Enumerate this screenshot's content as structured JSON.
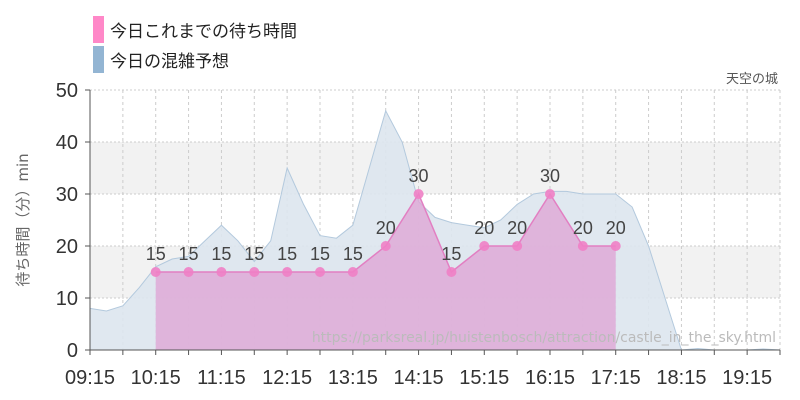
{
  "legend": [
    {
      "label": "今日これまでの待ち時間",
      "color": "#ff88c8"
    },
    {
      "label": "今日の混雑予想",
      "color": "#93b5d3"
    }
  ],
  "attraction_name": "天空の城",
  "source_url": "https://parksreal.jp/huistenbosch/attraction/castle_in_the_sky.html",
  "colors": {
    "actual_fill": "#dfa6d6",
    "actual_stroke": "#e27fc2",
    "marker": "#f080c5",
    "forecast_fill": "#dde6ee",
    "forecast_stroke": "#b3c9dd",
    "band": "#f2f2f2",
    "grid": "#cccccc",
    "axis": "#555555"
  },
  "chart_data": {
    "type": "area",
    "ylabel": "待ち時間（分）min",
    "ylim": [
      0,
      50
    ],
    "yticks": [
      0,
      10,
      20,
      30,
      40,
      50
    ],
    "xlim": [
      "09:15",
      "19:45"
    ],
    "xtick_labels": [
      "09:15",
      "10:15",
      "11:15",
      "12:15",
      "13:15",
      "14:15",
      "15:15",
      "16:15",
      "17:15",
      "18:15",
      "19:15"
    ],
    "grid": true,
    "legend_position": "top-left",
    "series": [
      {
        "name": "今日これまでの待ち時間",
        "x": [
          "10:15",
          "10:45",
          "11:15",
          "11:45",
          "12:15",
          "12:45",
          "13:15",
          "13:45",
          "14:15",
          "14:45",
          "15:15",
          "15:45",
          "16:15",
          "16:45",
          "17:15"
        ],
        "values": [
          15,
          15,
          15,
          15,
          15,
          15,
          15,
          20,
          30,
          15,
          20,
          20,
          30,
          20,
          20
        ]
      },
      {
        "name": "今日の混雑予想",
        "x": [
          "09:15",
          "09:30",
          "09:45",
          "10:00",
          "10:15",
          "10:30",
          "10:45",
          "11:00",
          "11:15",
          "11:30",
          "11:45",
          "12:00",
          "12:15",
          "12:30",
          "12:45",
          "13:00",
          "13:15",
          "13:30",
          "13:45",
          "14:00",
          "14:15",
          "14:30",
          "14:45",
          "15:00",
          "15:15",
          "15:30",
          "15:45",
          "16:00",
          "16:15",
          "16:30",
          "16:45",
          "17:00",
          "17:15",
          "17:30",
          "17:45",
          "18:00",
          "18:15",
          "18:30",
          "18:45",
          "19:00",
          "19:15",
          "19:30",
          "19:45"
        ],
        "values": [
          8,
          7.5,
          8.5,
          12,
          16,
          17.5,
          18,
          21,
          24,
          21,
          17,
          21,
          35,
          28,
          22,
          21.5,
          24,
          35,
          46,
          40,
          28.5,
          25.5,
          24.5,
          24,
          23.5,
          25,
          28,
          30,
          30.5,
          30.5,
          30,
          30,
          30,
          27.5,
          20,
          10,
          0,
          0.3,
          0,
          0,
          0,
          0.2,
          0
        ]
      }
    ]
  }
}
